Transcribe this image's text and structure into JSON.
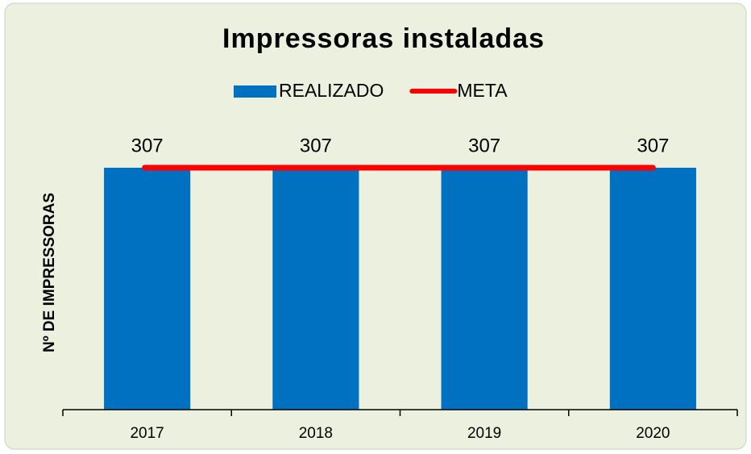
{
  "chart_data": {
    "type": "bar",
    "title": "Impressoras  instaladas",
    "y_label": "Nº DE IMPRESSORAS",
    "categories": [
      "2017",
      "2018",
      "2019",
      "2020"
    ],
    "series": [
      {
        "name": "REALIZADO",
        "type": "bar",
        "color": "#0070c0",
        "values": [
          307,
          307,
          307,
          307
        ]
      },
      {
        "name": "META",
        "type": "line",
        "color": "#ff0000",
        "values": [
          307,
          307,
          307,
          307
        ]
      }
    ],
    "ylim": [
      0,
      350
    ],
    "legend": "top"
  }
}
